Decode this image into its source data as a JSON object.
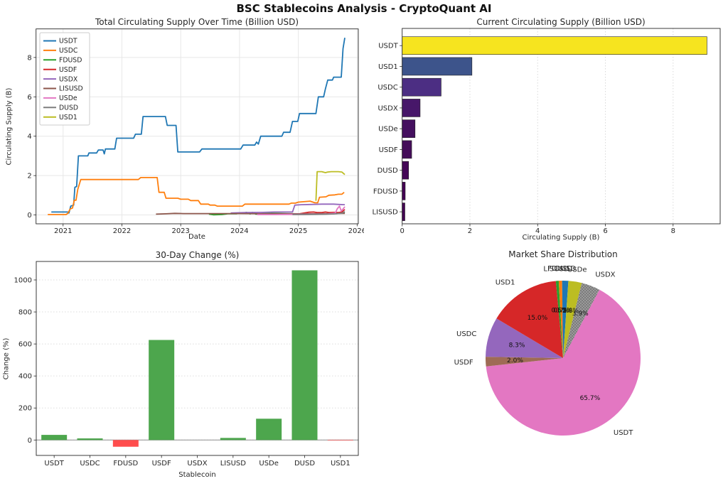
{
  "figure": {
    "title": "BSC Stablecoins Analysis - CryptoQuant AI"
  },
  "chart_data": [
    {
      "id": "supply_over_time",
      "type": "line",
      "title": "Total Circulating Supply Over Time (Billion USD)",
      "xlabel": "Date",
      "ylabel": "Circulating Supply (B)",
      "xlim": [
        2020.54,
        2026.02
      ],
      "ylim": [
        -0.45,
        9.45
      ],
      "xticks": [
        2021,
        2022,
        2023,
        2024,
        2025,
        2026
      ],
      "yticks": [
        0,
        2,
        4,
        6,
        8
      ],
      "grid": true,
      "legend_position": "upper left",
      "series": [
        {
          "name": "USDT",
          "color": "#1f77b4",
          "points": [
            [
              2020.8,
              0.15
            ],
            [
              2021.08,
              0.15
            ],
            [
              2021.1,
              0.1
            ],
            [
              2021.13,
              0.45
            ],
            [
              2021.18,
              0.5
            ],
            [
              2021.2,
              1.4
            ],
            [
              2021.23,
              1.45
            ],
            [
              2021.26,
              3.0
            ],
            [
              2021.42,
              3.0
            ],
            [
              2021.44,
              3.15
            ],
            [
              2021.57,
              3.15
            ],
            [
              2021.6,
              3.3
            ],
            [
              2021.68,
              3.3
            ],
            [
              2021.7,
              3.1
            ],
            [
              2021.72,
              3.35
            ],
            [
              2021.88,
              3.35
            ],
            [
              2021.91,
              3.9
            ],
            [
              2022.2,
              3.9
            ],
            [
              2022.23,
              4.1
            ],
            [
              2022.33,
              4.1
            ],
            [
              2022.36,
              5.0
            ],
            [
              2022.74,
              5.0
            ],
            [
              2022.77,
              4.55
            ],
            [
              2022.92,
              4.55
            ],
            [
              2022.95,
              3.2
            ],
            [
              2023.32,
              3.2
            ],
            [
              2023.36,
              3.35
            ],
            [
              2024.02,
              3.35
            ],
            [
              2024.06,
              3.55
            ],
            [
              2024.26,
              3.55
            ],
            [
              2024.29,
              3.7
            ],
            [
              2024.32,
              3.6
            ],
            [
              2024.36,
              4.0
            ],
            [
              2024.72,
              4.0
            ],
            [
              2024.75,
              4.2
            ],
            [
              2024.86,
              4.2
            ],
            [
              2024.9,
              4.75
            ],
            [
              2024.99,
              4.75
            ],
            [
              2025.02,
              5.15
            ],
            [
              2025.3,
              5.15
            ],
            [
              2025.34,
              6.0
            ],
            [
              2025.43,
              6.0
            ],
            [
              2025.46,
              6.4
            ],
            [
              2025.5,
              6.85
            ],
            [
              2025.58,
              6.85
            ],
            [
              2025.6,
              7.0
            ],
            [
              2025.73,
              7.0
            ],
            [
              2025.76,
              8.45
            ],
            [
              2025.79,
              9.0
            ]
          ]
        },
        {
          "name": "USDC",
          "color": "#ff7f0e",
          "points": [
            [
              2020.74,
              0.02
            ],
            [
              2021.05,
              0.02
            ],
            [
              2021.08,
              0.08
            ],
            [
              2021.12,
              0.3
            ],
            [
              2021.16,
              0.35
            ],
            [
              2021.19,
              0.75
            ],
            [
              2021.22,
              0.75
            ],
            [
              2021.25,
              1.3
            ],
            [
              2021.3,
              1.8
            ],
            [
              2022.28,
              1.8
            ],
            [
              2022.32,
              1.9
            ],
            [
              2022.6,
              1.9
            ],
            [
              2022.63,
              1.15
            ],
            [
              2022.72,
              1.15
            ],
            [
              2022.75,
              0.85
            ],
            [
              2022.95,
              0.85
            ],
            [
              2023.0,
              0.8
            ],
            [
              2023.13,
              0.8
            ],
            [
              2023.17,
              0.73
            ],
            [
              2023.3,
              0.73
            ],
            [
              2023.34,
              0.55
            ],
            [
              2023.47,
              0.55
            ],
            [
              2023.5,
              0.5
            ],
            [
              2023.58,
              0.5
            ],
            [
              2023.62,
              0.45
            ],
            [
              2024.05,
              0.45
            ],
            [
              2024.09,
              0.55
            ],
            [
              2024.84,
              0.55
            ],
            [
              2024.88,
              0.6
            ],
            [
              2024.95,
              0.6
            ],
            [
              2025.0,
              0.65
            ],
            [
              2025.2,
              0.7
            ],
            [
              2025.28,
              0.62
            ],
            [
              2025.33,
              0.62
            ],
            [
              2025.36,
              0.9
            ],
            [
              2025.47,
              0.92
            ],
            [
              2025.52,
              1.0
            ],
            [
              2025.62,
              1.02
            ],
            [
              2025.68,
              1.05
            ],
            [
              2025.74,
              1.05
            ],
            [
              2025.78,
              1.15
            ]
          ]
        },
        {
          "name": "FDUSD",
          "color": "#2ca02c",
          "points": [
            [
              2023.48,
              0.04
            ],
            [
              2023.56,
              0.01
            ],
            [
              2023.7,
              0.02
            ],
            [
              2023.8,
              0.06
            ],
            [
              2023.95,
              0.06
            ],
            [
              2024.0,
              0.1
            ],
            [
              2024.08,
              0.1
            ],
            [
              2024.12,
              0.13
            ],
            [
              2024.18,
              0.05
            ],
            [
              2024.22,
              0.13
            ],
            [
              2024.28,
              0.04
            ],
            [
              2024.4,
              0.07
            ],
            [
              2024.6,
              0.08
            ],
            [
              2024.8,
              0.07
            ],
            [
              2025.0,
              0.06
            ],
            [
              2025.2,
              0.04
            ],
            [
              2025.4,
              0.04
            ],
            [
              2025.6,
              0.06
            ],
            [
              2025.7,
              0.1
            ],
            [
              2025.79,
              0.14
            ]
          ]
        },
        {
          "name": "USDF",
          "color": "#d62728",
          "points": [
            [
              2024.88,
              0.03
            ],
            [
              2025.0,
              0.05
            ],
            [
              2025.1,
              0.1
            ],
            [
              2025.18,
              0.14
            ],
            [
              2025.26,
              0.15
            ],
            [
              2025.32,
              0.12
            ],
            [
              2025.4,
              0.12
            ],
            [
              2025.46,
              0.15
            ],
            [
              2025.52,
              0.12
            ],
            [
              2025.6,
              0.13
            ],
            [
              2025.68,
              0.12
            ],
            [
              2025.74,
              0.15
            ],
            [
              2025.79,
              0.28
            ]
          ]
        },
        {
          "name": "USDX",
          "color": "#9467bd",
          "points": [
            [
              2023.85,
              0.1
            ],
            [
              2024.1,
              0.12
            ],
            [
              2024.4,
              0.13
            ],
            [
              2024.6,
              0.15
            ],
            [
              2024.9,
              0.15
            ],
            [
              2024.94,
              0.5
            ],
            [
              2025.05,
              0.52
            ],
            [
              2025.2,
              0.53
            ],
            [
              2025.4,
              0.55
            ],
            [
              2025.6,
              0.55
            ],
            [
              2025.7,
              0.53
            ],
            [
              2025.79,
              0.52
            ]
          ]
        },
        {
          "name": "LISUSD",
          "color": "#8c564b",
          "points": [
            [
              2022.58,
              0.04
            ],
            [
              2022.75,
              0.06
            ],
            [
              2022.9,
              0.08
            ],
            [
              2023.05,
              0.07
            ],
            [
              2023.5,
              0.07
            ],
            [
              2024.0,
              0.07
            ],
            [
              2024.5,
              0.06
            ],
            [
              2025.0,
              0.06
            ],
            [
              2025.5,
              0.07
            ],
            [
              2025.79,
              0.08
            ]
          ]
        },
        {
          "name": "USDe",
          "color": "#e377c2",
          "points": [
            [
              2024.3,
              0.02
            ],
            [
              2024.6,
              0.02
            ],
            [
              2024.9,
              0.03
            ],
            [
              2025.1,
              0.03
            ],
            [
              2025.3,
              0.04
            ],
            [
              2025.5,
              0.05
            ],
            [
              2025.58,
              0.08
            ],
            [
              2025.63,
              0.1
            ],
            [
              2025.66,
              0.3
            ],
            [
              2025.7,
              0.45
            ],
            [
              2025.73,
              0.2
            ],
            [
              2025.76,
              0.3
            ],
            [
              2025.79,
              0.42
            ]
          ]
        },
        {
          "name": "DUSD",
          "color": "#7f7f7f",
          "points": [
            [
              2024.9,
              0.02
            ],
            [
              2025.1,
              0.02
            ],
            [
              2025.3,
              0.03
            ],
            [
              2025.5,
              0.04
            ],
            [
              2025.65,
              0.06
            ],
            [
              2025.75,
              0.1
            ],
            [
              2025.79,
              0.17
            ]
          ]
        },
        {
          "name": "USD1",
          "color": "#bcbd22",
          "points": [
            [
              2025.3,
              0.72
            ],
            [
              2025.32,
              2.2
            ],
            [
              2025.4,
              2.2
            ],
            [
              2025.46,
              2.15
            ],
            [
              2025.5,
              2.18
            ],
            [
              2025.56,
              2.2
            ],
            [
              2025.68,
              2.2
            ],
            [
              2025.74,
              2.18
            ],
            [
              2025.79,
              2.05
            ]
          ]
        }
      ]
    },
    {
      "id": "current_supply",
      "type": "bar",
      "orientation": "horizontal",
      "title": "Current Circulating Supply (Billion USD)",
      "xlabel": "Circulating Supply (B)",
      "categories": [
        "USDT",
        "USD1",
        "USDC",
        "USDX",
        "USDe",
        "USDF",
        "DUSD",
        "FDUSD",
        "LISUSD"
      ],
      "values": [
        9.0,
        2.06,
        1.15,
        0.53,
        0.38,
        0.28,
        0.19,
        0.09,
        0.08
      ],
      "colors": [
        "#f6e41f",
        "#3d548b",
        "#4c2e83",
        "#471769",
        "#45105f",
        "#440d59",
        "#440757",
        "#440154",
        "#440154"
      ],
      "xticks": [
        0,
        2,
        4,
        6,
        8
      ],
      "xlim": [
        0,
        9.39
      ],
      "grid": "x-dashed"
    },
    {
      "id": "change_30d",
      "type": "bar",
      "orientation": "vertical",
      "title": "30-Day Change (%)",
      "xlabel": "Stablecoin",
      "ylabel": "Change (%)",
      "categories": [
        "USDT",
        "USDC",
        "FDUSD",
        "USDF",
        "USDX",
        "LISUSD",
        "USDe",
        "DUSD",
        "USD1"
      ],
      "values": [
        32,
        10,
        -42,
        625,
        0,
        13,
        133,
        1060,
        -3
      ],
      "positive_color": "#4da64d",
      "negative_color": "#ff4d4d",
      "yticks": [
        0,
        200,
        400,
        600,
        800,
        1000
      ],
      "ylim": [
        -96,
        1115
      ],
      "grid": "y-dashed"
    },
    {
      "id": "market_share",
      "type": "pie",
      "title": "Market Share Distribution",
      "start_angle_deg": 62,
      "direction": "clockwise",
      "slices": [
        {
          "label": "USDT",
          "pct": 65.7,
          "pct_label": "65.7%",
          "color": "#e377c2"
        },
        {
          "label": "USDF",
          "pct": 2.0,
          "pct_label": "2.0%",
          "color": "#9e6b55"
        },
        {
          "label": "USDC",
          "pct": 8.3,
          "pct_label": "8.3%",
          "color": "#9467bd"
        },
        {
          "label": "USD1",
          "pct": 15.0,
          "pct_label": "15.0%",
          "color": "#d62728"
        },
        {
          "label": "LISUSD",
          "pct": 0.6,
          "pct_label": "0.6%",
          "color": "#2ca02c"
        },
        {
          "label": "FDUSD",
          "pct": 0.7,
          "pct_label": "0.7%",
          "color": "#ff7f0e"
        },
        {
          "label": "DUSD",
          "pct": 1.3,
          "pct_label": "1.3%",
          "color": "#1f77b4"
        },
        {
          "label": "USDe",
          "pct": 2.8,
          "pct_label": "2.8%",
          "color": "#bcbd22"
        },
        {
          "label": "USDX",
          "pct": 3.9,
          "pct_label": "3.9%",
          "color": "#9a9a9a",
          "hatch": "dots"
        }
      ]
    }
  ]
}
